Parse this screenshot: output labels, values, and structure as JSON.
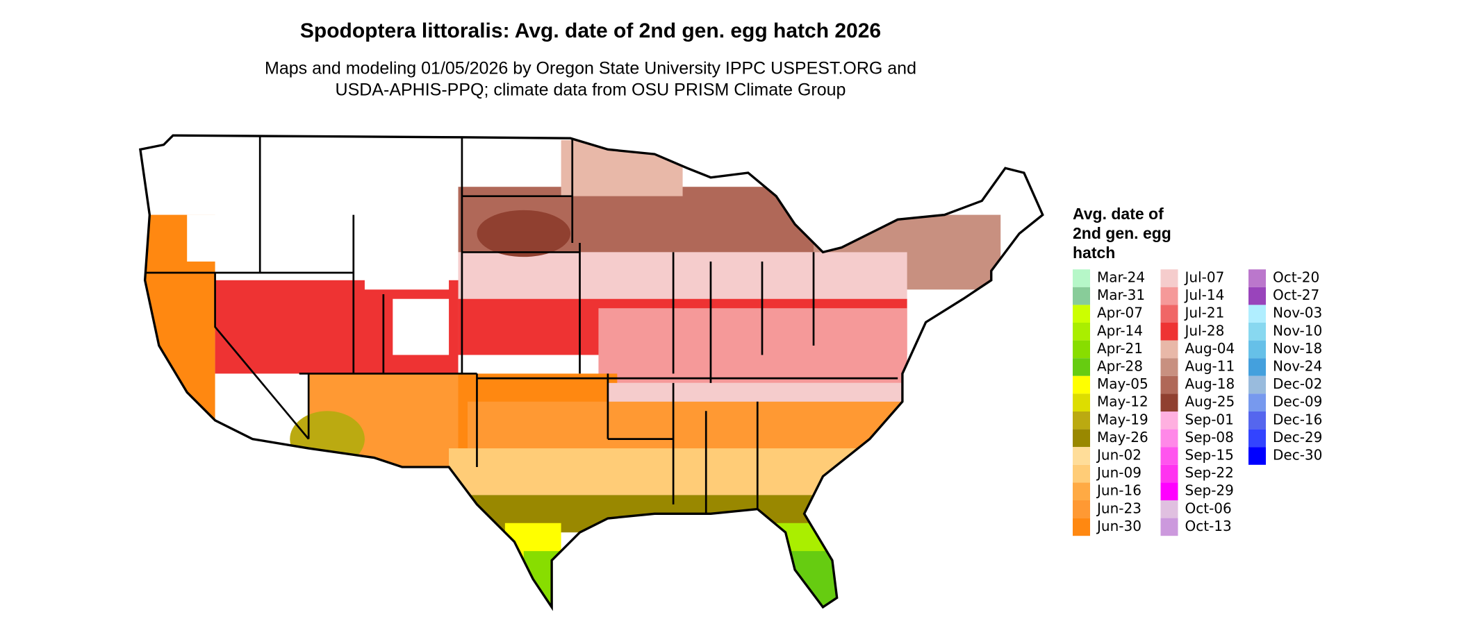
{
  "map": {
    "title": "Spodoptera littoralis: Avg. date of 2nd gen. egg hatch 2026",
    "subtitle": [
      "Maps and modeling 01/05/2026 by Oregon State University IPPC USPEST.ORG and",
      "USDA-APHIS-PPQ; climate data from OSU PRISM Climate Group"
    ],
    "legend": {
      "title": [
        "Avg. date of",
        "2nd gen. egg",
        "hatch"
      ],
      "items": [
        {
          "label": "Mar-24",
          "color": "#b6f7c8"
        },
        {
          "label": "Mar-31",
          "color": "#88cc99"
        },
        {
          "label": "Apr-07",
          "color": "#ccff00"
        },
        {
          "label": "Apr-14",
          "color": "#aaee00"
        },
        {
          "label": "Apr-21",
          "color": "#88dd00"
        },
        {
          "label": "Apr-28",
          "color": "#66cc11"
        },
        {
          "label": "May-05",
          "color": "#ffff00"
        },
        {
          "label": "May-12",
          "color": "#dddd00"
        },
        {
          "label": "May-19",
          "color": "#bbaa11"
        },
        {
          "label": "May-26",
          "color": "#998800"
        },
        {
          "label": "Jun-02",
          "color": "#ffdd99"
        },
        {
          "label": "Jun-09",
          "color": "#ffcc77"
        },
        {
          "label": "Jun-16",
          "color": "#ffaa44"
        },
        {
          "label": "Jun-23",
          "color": "#ff9933"
        },
        {
          "label": "Jun-30",
          "color": "#ff8811"
        },
        {
          "label": "Jul-07",
          "color": "#f5cccc"
        },
        {
          "label": "Jul-14",
          "color": "#f59999"
        },
        {
          "label": "Jul-21",
          "color": "#f06666"
        },
        {
          "label": "Jul-28",
          "color": "#ee3333"
        },
        {
          "label": "Aug-04",
          "color": "#e8b8a8"
        },
        {
          "label": "Aug-11",
          "color": "#c89080"
        },
        {
          "label": "Aug-18",
          "color": "#b06858"
        },
        {
          "label": "Aug-25",
          "color": "#904030"
        },
        {
          "label": "Sep-01",
          "color": "#ffb0e0"
        },
        {
          "label": "Sep-08",
          "color": "#ff88e8"
        },
        {
          "label": "Sep-15",
          "color": "#ff55ee"
        },
        {
          "label": "Sep-22",
          "color": "#ff33f0"
        },
        {
          "label": "Sep-29",
          "color": "#ff00ff"
        },
        {
          "label": "Oct-06",
          "color": "#e0c0e0"
        },
        {
          "label": "Oct-13",
          "color": "#cc99dd"
        },
        {
          "label": "Oct-20",
          "color": "#bb77cc"
        },
        {
          "label": "Oct-27",
          "color": "#9944bb"
        },
        {
          "label": "Nov-03",
          "color": "#b0eeff"
        },
        {
          "label": "Nov-10",
          "color": "#88d8f0"
        },
        {
          "label": "Nov-18",
          "color": "#66c0e8"
        },
        {
          "label": "Nov-24",
          "color": "#44a0dd"
        },
        {
          "label": "Dec-02",
          "color": "#99bbdd"
        },
        {
          "label": "Dec-09",
          "color": "#7799ee"
        },
        {
          "label": "Dec-16",
          "color": "#5566ee"
        },
        {
          "label": "Dec-29",
          "color": "#3344ff"
        },
        {
          "label": "Dec-30",
          "color": "#0000ff"
        }
      ]
    }
  }
}
